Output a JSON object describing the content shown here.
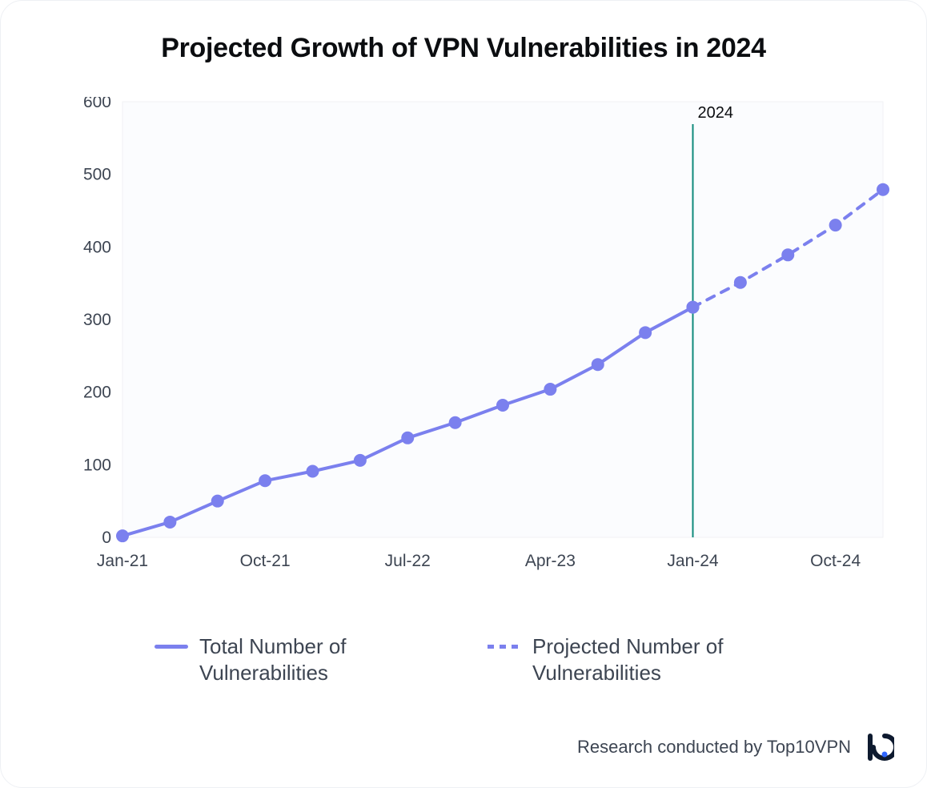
{
  "title": "Projected Growth of VPN Vulnerabilities in 2024",
  "chart": {
    "type": "line",
    "background_color": "#ffffff",
    "plot_background_color": "#fbfcfe",
    "plot_border_color": "#f0f1f4",
    "line_color": "#7b80ee",
    "marker_color": "#7b80ee",
    "marker_radius": 8,
    "line_width": 4,
    "vline_color": "#0f8a7a",
    "vline_label": "2024",
    "vline_label_color": "#0b0d10",
    "tick_color": "#3d4552",
    "dash_pattern": "10 10",
    "x_categories": [
      "Jan-21",
      "Apr-21",
      "Jul-21",
      "Oct-21",
      "Jan-22",
      "Apr-22",
      "Jul-22",
      "Oct-22",
      "Jan-23",
      "Apr-23",
      "Jul-23",
      "Oct-23",
      "Jan-24",
      "Apr-24",
      "Jul-24",
      "Oct-24",
      "Jan-25"
    ],
    "x_tick_labels": [
      "Jan-21",
      "",
      "",
      "Oct-21",
      "",
      "",
      "Jul-22",
      "",
      "",
      "Apr-23",
      "",
      "",
      "Jan-24",
      "",
      "",
      "Oct-24",
      ""
    ],
    "y_lim": [
      0,
      600
    ],
    "y_ticks": [
      0,
      100,
      200,
      300,
      400,
      500,
      600
    ],
    "series_actual": [
      2,
      21,
      50,
      78,
      91,
      106,
      137,
      158,
      182,
      204,
      238,
      282,
      317,
      null,
      null,
      null,
      null
    ],
    "series_projected": [
      null,
      null,
      null,
      null,
      null,
      null,
      null,
      null,
      null,
      null,
      null,
      null,
      317,
      351,
      389,
      430,
      479
    ]
  },
  "legend": {
    "items": [
      {
        "label": "Total Number of Vulnerabilities",
        "style": "solid",
        "color": "#7b80ee"
      },
      {
        "label": "Projected Number of Vulnerabilities",
        "style": "dashed",
        "color": "#7b80ee"
      }
    ]
  },
  "footer": {
    "text": "Research conducted by Top10VPN",
    "logo_stroke": "#0e1a2f",
    "logo_dot": "#2f66ff"
  }
}
